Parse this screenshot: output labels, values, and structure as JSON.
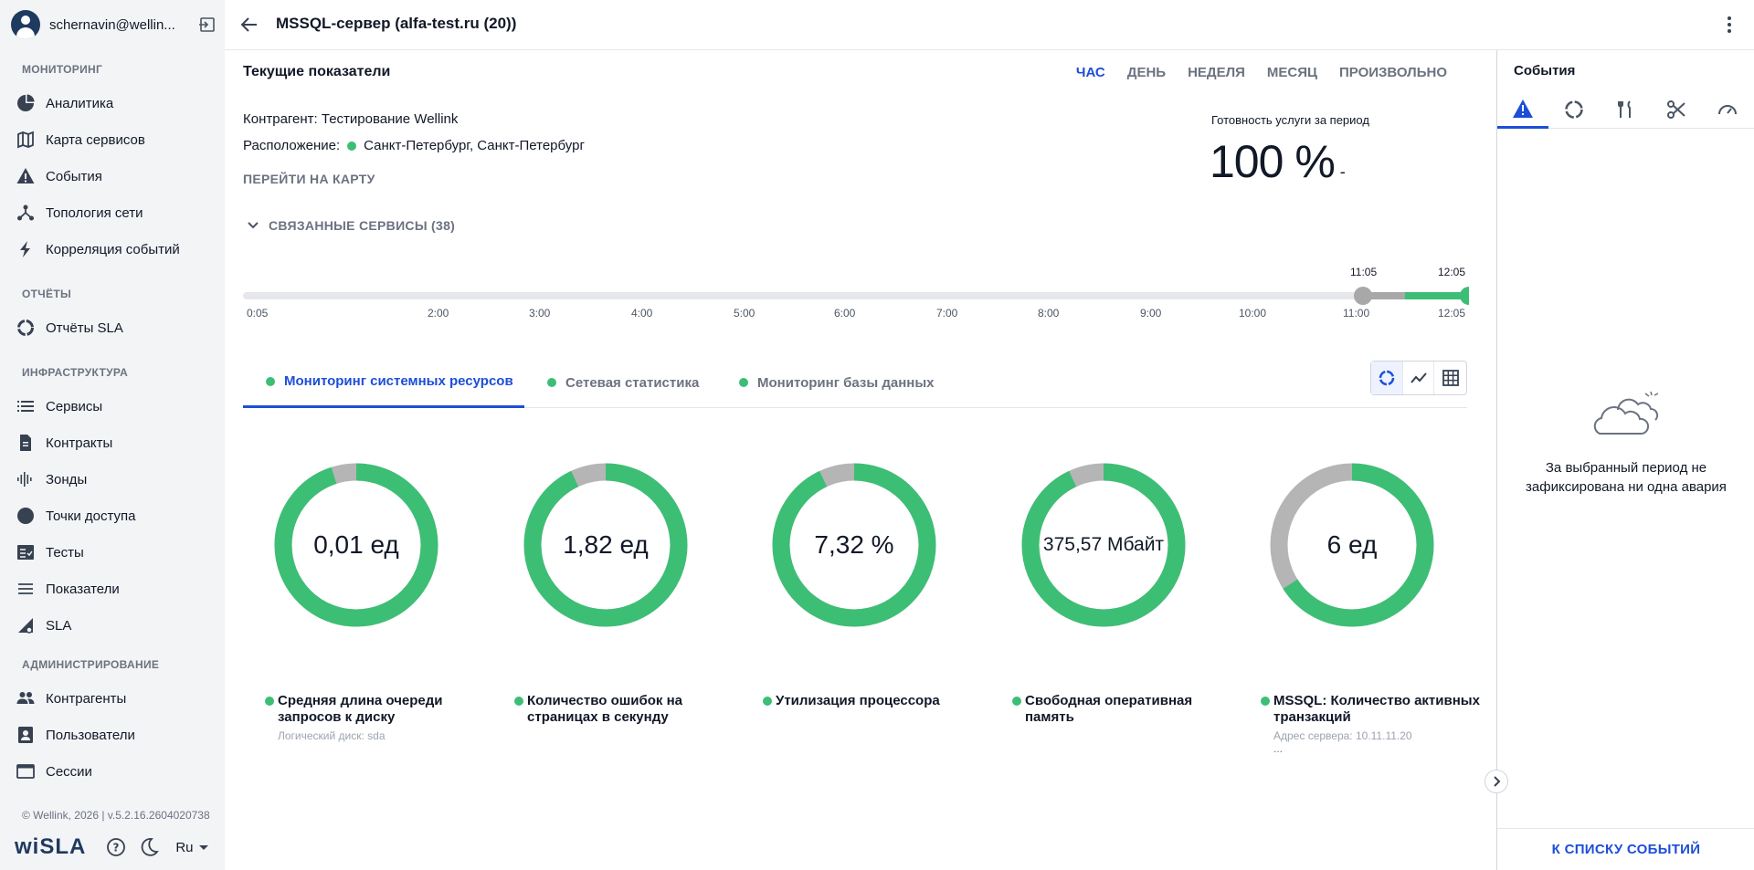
{
  "user": {
    "name": "schernavin@wellin..."
  },
  "sidebar": {
    "sections": [
      {
        "title": "МОНИТОРИНГ",
        "items": [
          {
            "label": "Аналитика",
            "icon": "pie-chart-icon"
          },
          {
            "label": "Карта сервисов",
            "icon": "map-icon"
          },
          {
            "label": "События",
            "icon": "warning-icon"
          },
          {
            "label": "Топология сети",
            "icon": "topology-icon"
          },
          {
            "label": "Корреляция событий",
            "icon": "lightning-icon"
          }
        ]
      },
      {
        "title": "ОТЧЁТЫ",
        "items": [
          {
            "label": "Отчёты SLA",
            "icon": "ring-icon"
          }
        ]
      },
      {
        "title": "ИНФРАСТРУКТУРА",
        "items": [
          {
            "label": "Сервисы",
            "icon": "list-icon"
          },
          {
            "label": "Контракты",
            "icon": "document-icon"
          },
          {
            "label": "Зонды",
            "icon": "signal-icon"
          },
          {
            "label": "Точки доступа",
            "icon": "circle-icon"
          },
          {
            "label": "Тесты",
            "icon": "checklist-icon"
          },
          {
            "label": "Показатели",
            "icon": "lines-icon"
          },
          {
            "label": "SLA",
            "icon": "sla-icon"
          }
        ]
      },
      {
        "title": "АДМИНИСТРИРОВАНИЕ",
        "items": [
          {
            "label": "Контрагенты",
            "icon": "people-icon"
          },
          {
            "label": "Пользователи",
            "icon": "user-card-icon"
          },
          {
            "label": "Сессии",
            "icon": "window-icon"
          }
        ]
      }
    ],
    "copyright": "© Wellink, 2026 | v.5.2.16.2604020738",
    "logo": "wiSLA",
    "lang": "Ru"
  },
  "header": {
    "title": "MSSQL-сервер (alfa-test.ru (20))"
  },
  "main": {
    "title": "Текущие показатели",
    "periods": [
      "ЧАС",
      "ДЕНЬ",
      "НЕДЕЛЯ",
      "МЕСЯЦ",
      "ПРОИЗВОЛЬНО"
    ],
    "active_period": "ЧАС",
    "contractor": "Контрагент: Тестирование Wellink",
    "location_label": "Расположение:",
    "location_value": "Санкт-Петербург, Санкт-Петербург",
    "map_link": "ПЕРЕЙТИ НА КАРТУ",
    "readiness_label": "Готовность услуги за период",
    "readiness_value": "100 %",
    "readiness_suffix": "-",
    "related": "СВЯЗАННЫЕ СЕРВИСЫ (38)",
    "timeline": {
      "ticks": [
        "0:05",
        "2:00",
        "3:00",
        "4:00",
        "5:00",
        "6:00",
        "7:00",
        "8:00",
        "9:00",
        "10:00",
        "11:00",
        "12:05"
      ],
      "selection_start": "11:05",
      "selection_end": "12:05"
    },
    "tabs": [
      "Мониторинг системных ресурсов",
      "Сетевая статистика",
      "Мониторинг базы данных"
    ],
    "gauges": [
      {
        "value": "0,01 ед",
        "label": "Средняя длина очереди запросов к диску",
        "sub": "Логический диск: sda",
        "fill": 0.95
      },
      {
        "value": "1,82 ед",
        "label": "Количество ошибок на страницах в секунду",
        "sub": "",
        "fill": 0.93
      },
      {
        "value": "7,32 %",
        "label": "Утилизация процессора",
        "sub": "",
        "fill": 0.93
      },
      {
        "value": "375,57 Мбайт",
        "label": "Свободная оперативная память",
        "sub": "",
        "fill": 0.93
      },
      {
        "value": "6 ед",
        "label": "MSSQL: Количество активных транзакций",
        "sub": "Адрес сервера: 10.11.11.20",
        "more": "...",
        "fill": 0.66
      }
    ]
  },
  "events": {
    "title": "События",
    "empty_text": "За выбранный период не зафиксирована ни одна авария",
    "footer": "К СПИСКУ СОБЫТИЙ"
  },
  "colors": {
    "accent": "#1d4ed8",
    "green": "#3dbe75",
    "grey": "#b5b5b5"
  }
}
